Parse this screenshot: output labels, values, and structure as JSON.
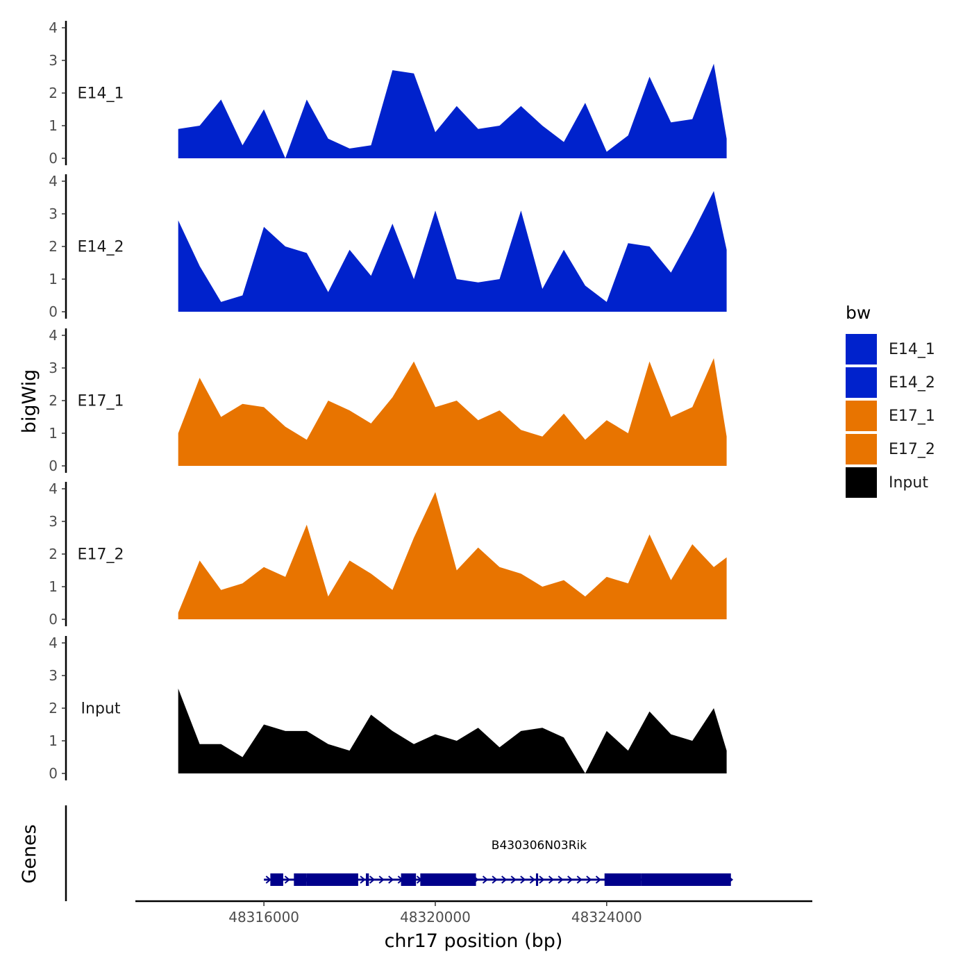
{
  "chart_data": {
    "type": "area",
    "xlabel": "chr17 position (bp)",
    "ylabel": "bigWig",
    "genes_label": "Genes",
    "xlim": [
      48313000,
      48328800
    ],
    "ylim": [
      0,
      4
    ],
    "y_ticks": [
      0,
      1,
      2,
      3,
      4
    ],
    "x_ticks": [
      48316000,
      48320000,
      48324000
    ],
    "x_tick_labels": [
      "48316000",
      "48320000",
      "48324000"
    ],
    "legend": {
      "title": "bw",
      "entries": [
        {
          "label": "E14_1",
          "color": "#0022CC"
        },
        {
          "label": "E14_2",
          "color": "#0022CC"
        },
        {
          "label": "E17_1",
          "color": "#E87400"
        },
        {
          "label": "E17_2",
          "color": "#E87400"
        },
        {
          "label": "Input",
          "color": "#000000"
        }
      ]
    },
    "x": [
      48314000,
      48314500,
      48315000,
      48315500,
      48316000,
      48316500,
      48317000,
      48317500,
      48318000,
      48318500,
      48319000,
      48319500,
      48320000,
      48320500,
      48321000,
      48321500,
      48322000,
      48322500,
      48323000,
      48323500,
      48324000,
      48324500,
      48325000,
      48325500,
      48326000,
      48326500,
      48326800
    ],
    "series": [
      {
        "name": "E14_1",
        "color": "#0022CC",
        "values": [
          0.9,
          1.0,
          1.8,
          0.4,
          1.5,
          0.0,
          1.8,
          0.6,
          0.3,
          0.4,
          2.7,
          2.6,
          0.8,
          1.6,
          0.9,
          1.0,
          1.6,
          1.0,
          0.5,
          1.7,
          0.2,
          0.7,
          2.5,
          1.1,
          1.2,
          2.9,
          0.6
        ]
      },
      {
        "name": "E14_2",
        "color": "#0022CC",
        "values": [
          2.8,
          1.4,
          0.3,
          0.5,
          2.6,
          2.0,
          1.8,
          0.6,
          1.9,
          1.1,
          2.7,
          1.0,
          3.1,
          1.0,
          0.9,
          1.0,
          3.1,
          0.7,
          1.9,
          0.8,
          0.3,
          2.1,
          2.0,
          1.2,
          2.4,
          3.7,
          1.9
        ]
      },
      {
        "name": "E17_1",
        "color": "#E87400",
        "values": [
          1.0,
          2.7,
          1.5,
          1.9,
          1.8,
          1.2,
          0.8,
          2.0,
          1.7,
          1.3,
          2.1,
          3.2,
          1.8,
          2.0,
          1.4,
          1.7,
          1.1,
          0.9,
          1.6,
          0.8,
          1.4,
          1.0,
          3.2,
          1.5,
          1.8,
          3.3,
          0.9
        ]
      },
      {
        "name": "E17_2",
        "color": "#E87400",
        "values": [
          0.2,
          1.8,
          0.9,
          1.1,
          1.6,
          1.3,
          2.9,
          0.7,
          1.8,
          1.4,
          0.9,
          2.5,
          3.9,
          1.5,
          2.2,
          1.6,
          1.4,
          1.0,
          1.2,
          0.7,
          1.3,
          1.1,
          2.6,
          1.2,
          2.3,
          1.6,
          1.9
        ]
      },
      {
        "name": "Input",
        "color": "#000000",
        "values": [
          2.6,
          0.9,
          0.9,
          0.5,
          1.5,
          1.3,
          1.3,
          0.9,
          0.7,
          1.8,
          1.3,
          0.9,
          1.2,
          1.0,
          1.4,
          0.8,
          1.3,
          1.4,
          1.1,
          0.0,
          1.3,
          0.7,
          1.9,
          1.2,
          1.0,
          2.0,
          0.7
        ]
      }
    ],
    "gene": {
      "name": "B430306N03Rik",
      "strand": "+",
      "start": 48316000,
      "end": 48326900,
      "exons": [
        [
          48316150,
          48316450
        ],
        [
          48316700,
          48317000
        ],
        [
          48317000,
          48318200
        ],
        [
          48318380,
          48318450
        ],
        [
          48319200,
          48319550
        ],
        [
          48319650,
          48320950
        ],
        [
          48322350,
          48322400
        ],
        [
          48323950,
          48324800
        ],
        [
          48324800,
          48326900
        ]
      ]
    }
  }
}
